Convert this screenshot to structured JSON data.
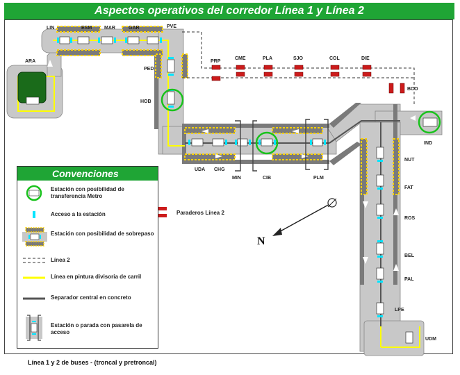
{
  "title": "Aspectos operativos del corredor  Línea 1 y Línea 2",
  "caption": "Línea 1 y 2 de buses - (troncal y pretroncal)",
  "colors": {
    "green": "#1fa535",
    "road": "#c8c8c8",
    "road_dark": "#7a7a7a",
    "station_access": "#00e5ff",
    "yellow_line": "#ffff00",
    "red_stop": "#cc1b1b",
    "terminal": "#1a6b1a"
  },
  "stations": {
    "ARA": "ARA",
    "LIN": "LIN",
    "ESM": "ESM",
    "MAR": "MAR",
    "GAR": "GAR",
    "PVE": "PVE",
    "PED": "PED",
    "HOB": "HOB",
    "UDA": "UDA",
    "CHG": "CHG",
    "MIN": "MIN",
    "CIB": "CIB",
    "PLM": "PLM",
    "IND": "IND",
    "NUT": "NUT",
    "FAT": "FAT",
    "ROS": "ROS",
    "BEL": "BEL",
    "PAL": "PAL",
    "LPE": "LPE",
    "UDM": "UDM"
  },
  "linea2_stops": {
    "PRP": "PRP",
    "CME": "CME",
    "PLA": "PLA",
    "SJO": "SJO",
    "COL": "COL",
    "DIE": "DIE",
    "BCO": "BCO"
  },
  "north": "N",
  "legend": {
    "title": "Convenciones",
    "items": [
      "Estación con posibilidad de transferencia Metro",
      "Acceso a la estación",
      "Estación con posibilidad de sobrepaso",
      "Línea 2",
      "Línea en pintura divisoria de carril",
      "Separador central en concreto",
      "Estación o parada con pasarela de acceso"
    ],
    "red_stops": "Paraderos Línea 2"
  }
}
